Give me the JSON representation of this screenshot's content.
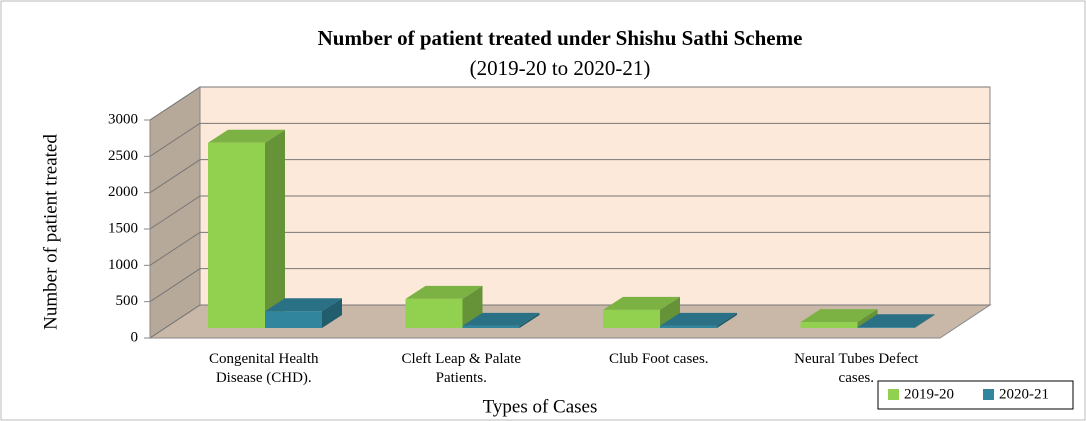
{
  "chart_data": {
    "type": "bar3d",
    "title": "Number of patient treated under Shishu Sathi Scheme",
    "subtitle": "(2019-20 to 2020-21)",
    "x_label": "Types of Cases",
    "y_label": "Number of patient treated",
    "categories": [
      "Congenital Health Disease (CHD).",
      "Cleft Leap & Palate Patients.",
      "Club Foot cases.",
      "Neural Tubes Defect cases."
    ],
    "series": [
      {
        "name": "2019-20",
        "color": "#92d050",
        "values": [
          2550,
          400,
          250,
          80
        ]
      },
      {
        "name": "2020-21",
        "color": "#31859c",
        "values": [
          230,
          30,
          30,
          10
        ]
      }
    ],
    "ylim": [
      0,
      3000
    ],
    "yticks": [
      0,
      500,
      1000,
      1500,
      2000,
      2500,
      3000
    ],
    "grid": true,
    "legend": "bottom-right"
  }
}
